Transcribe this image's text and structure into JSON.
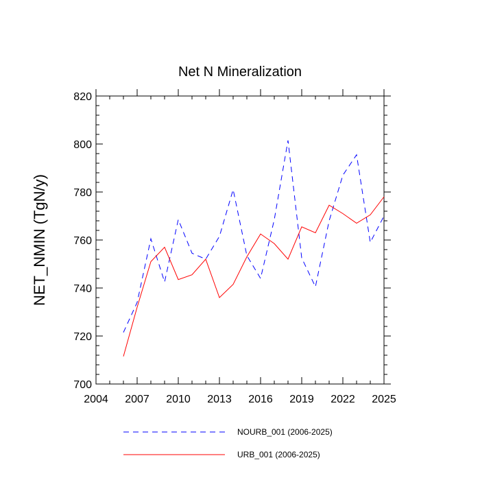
{
  "chart_data": {
    "type": "line",
    "title": "Net N Mineralization",
    "xlabel": "",
    "ylabel": "NET_NMIN  (TgN/y)",
    "xlim": [
      2004,
      2025
    ],
    "ylim": [
      700,
      820
    ],
    "xticks": [
      2004,
      2007,
      2010,
      2013,
      2016,
      2019,
      2022,
      2025
    ],
    "yticks": [
      700,
      720,
      740,
      760,
      780,
      800,
      820
    ],
    "x": [
      2006,
      2007,
      2008,
      2009,
      2010,
      2011,
      2012,
      2013,
      2014,
      2015,
      2016,
      2017,
      2018,
      2019,
      2020,
      2021,
      2022,
      2023,
      2024,
      2025
    ],
    "series": [
      {
        "name": "NOURB_001 (2006-2025)",
        "color": "#0000ff",
        "style": "dashed",
        "values": [
          721.5,
          734,
          760.5,
          742.5,
          768.5,
          754.5,
          752,
          761.5,
          781,
          753.5,
          744,
          768.5,
          801.5,
          752.5,
          740.5,
          768,
          787,
          795.5,
          759,
          770
        ]
      },
      {
        "name": "URB_001 (2006-2025)",
        "color": "#ff0000",
        "style": "solid",
        "values": [
          711.5,
          732,
          751,
          757,
          743.5,
          745.5,
          752,
          736,
          741.5,
          753,
          762.5,
          758.5,
          752,
          765.5,
          763,
          774.5,
          771,
          767,
          770.5,
          778
        ]
      }
    ],
    "legend_position": "bottom"
  }
}
